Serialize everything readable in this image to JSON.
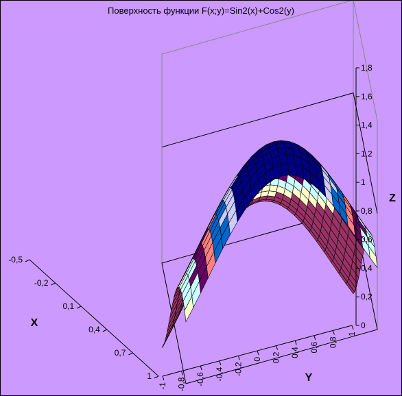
{
  "chart_data": {
    "type": "surface",
    "title": "Поверхность функции F(x;y)=Sin2(x)+Cos2(y)",
    "function": "F(x;y)=Sin2(x)+Cos2(y)",
    "x_axis": {
      "label": "X",
      "ticks": [
        "-0,5",
        "-0,2",
        "0,1",
        "0,4",
        "0,7",
        "1"
      ],
      "range": [
        -0.5,
        1.0
      ]
    },
    "y_axis": {
      "label": "Y",
      "ticks": [
        "-1",
        "-0,8",
        "-0,6",
        "-0,4",
        "-0,2",
        "0",
        "0,2",
        "0,4",
        "0,6",
        "0,8",
        "1"
      ],
      "range": [
        -1.0,
        1.0
      ]
    },
    "z_axis": {
      "label": "Z",
      "ticks": [
        "0",
        "0,2",
        "0,4",
        "0,6",
        "0,8",
        "1",
        "1,2",
        "1,4",
        "1,6",
        "1,8"
      ],
      "range": [
        0,
        1.8
      ]
    },
    "band_colors": [
      "#993366",
      "#ffffcc",
      "#ccffff",
      "#660066",
      "#ff8080",
      "#0066cc",
      "#ccccff",
      "#000080"
    ],
    "colors": {
      "background": "#cc99ff",
      "mesh": "#000000",
      "wall_lines": "#888888"
    }
  }
}
